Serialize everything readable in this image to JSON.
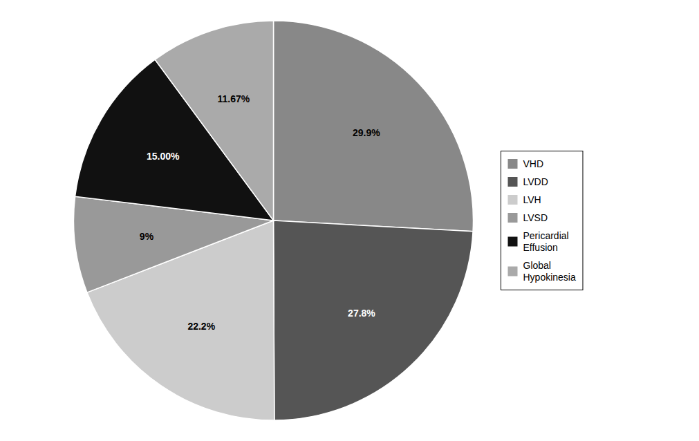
{
  "chart_data": {
    "type": "pie",
    "categories": [
      "VHD",
      "LVDD",
      "LVH",
      "LVSD",
      "Pericardial\nEffusion",
      "Global\nHypokinesia"
    ],
    "values": [
      29.9,
      27.8,
      22.2,
      9.0,
      15.0,
      11.67
    ],
    "value_labels": [
      "29.9%",
      "27.8%",
      "22.2%",
      "9%",
      "15.00%",
      "11.67%"
    ],
    "colors": [
      "#888888",
      "#555555",
      "#cccccc",
      "#999999",
      "#111111",
      "#aaaaaa"
    ],
    "data_labels": true,
    "legend": "right"
  }
}
